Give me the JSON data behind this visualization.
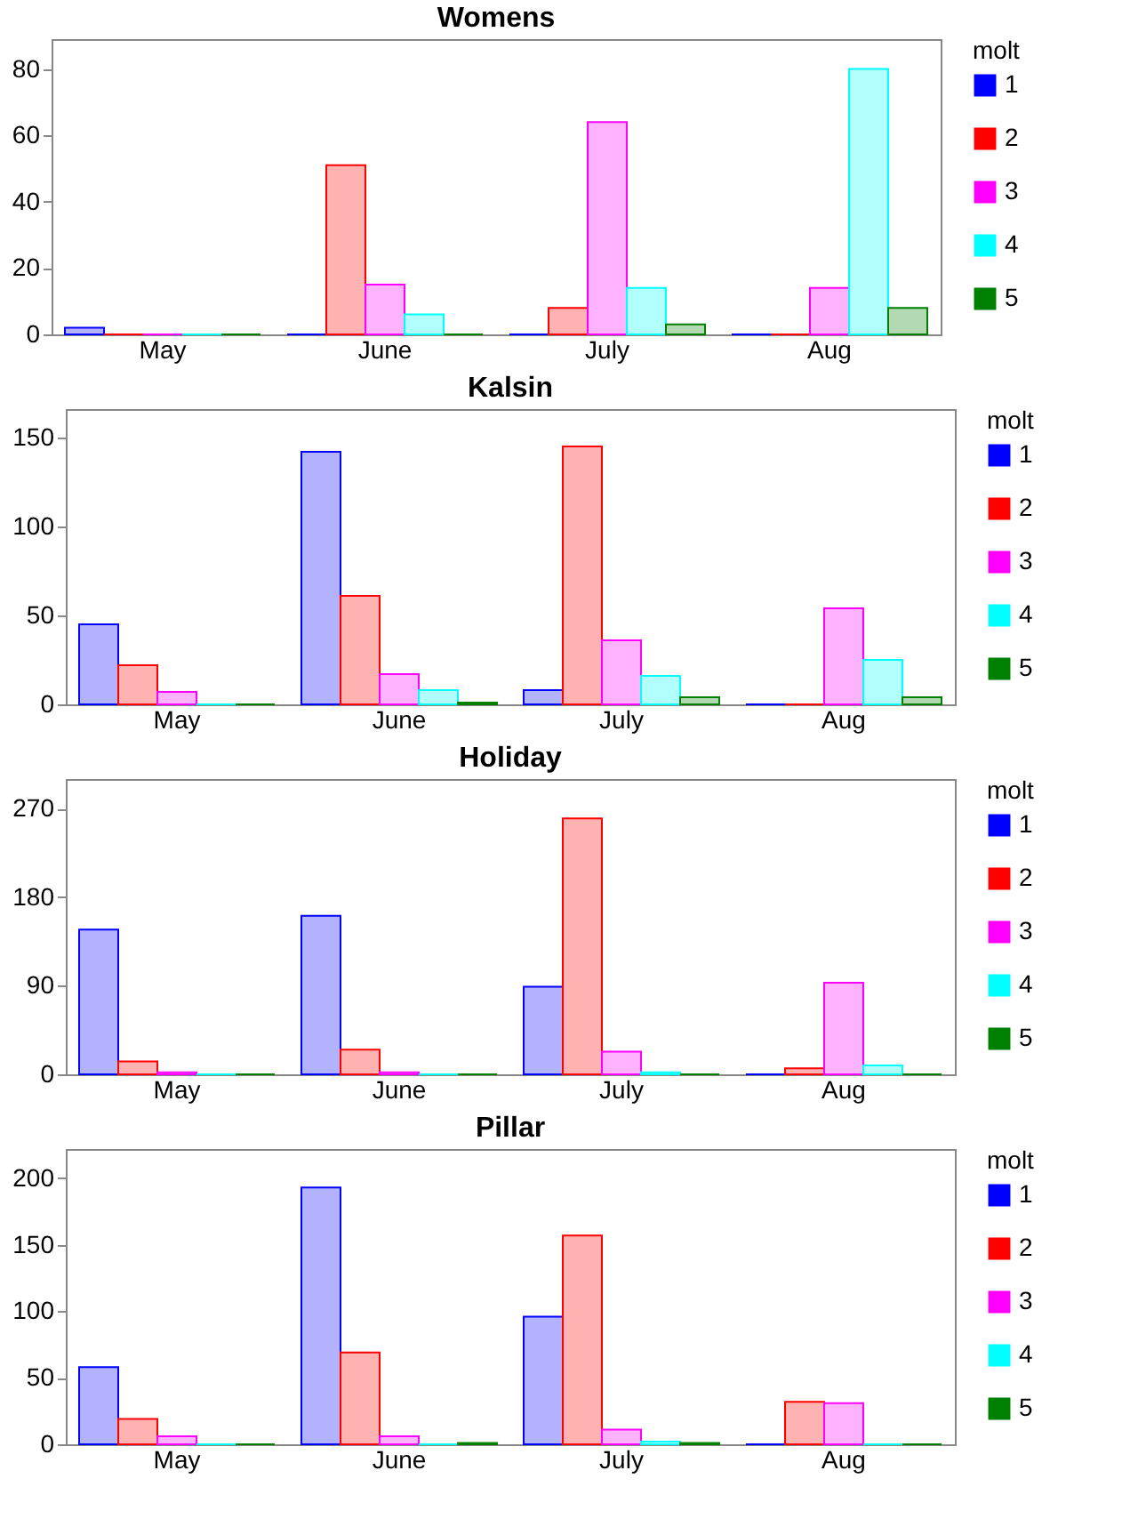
{
  "chart_data": [
    {
      "type": "bar",
      "title": "Womens",
      "categories": [
        "May",
        "June",
        "July",
        "Aug"
      ],
      "legend_title": "molt",
      "legend": "right",
      "ylim": [
        0,
        89
      ],
      "yticks": [
        0,
        20,
        40,
        60,
        80
      ],
      "series": [
        {
          "name": "1",
          "color": "#0000ff",
          "values": [
            2,
            0,
            0,
            0
          ]
        },
        {
          "name": "2",
          "color": "#ff0000",
          "values": [
            0,
            51,
            8,
            0
          ]
        },
        {
          "name": "3",
          "color": "#ff00ff",
          "values": [
            0,
            15,
            64,
            14
          ]
        },
        {
          "name": "4",
          "color": "#00ffff",
          "values": [
            0,
            6,
            14,
            80
          ]
        },
        {
          "name": "5",
          "color": "#008000",
          "values": [
            0,
            0,
            3,
            8
          ]
        }
      ]
    },
    {
      "type": "bar",
      "title": "Kalsin",
      "categories": [
        "May",
        "June",
        "July",
        "Aug"
      ],
      "legend_title": "molt",
      "legend": "right",
      "ylim": [
        0,
        166
      ],
      "yticks": [
        0,
        50,
        100,
        150
      ],
      "series": [
        {
          "name": "1",
          "color": "#0000ff",
          "values": [
            45,
            142,
            8,
            0
          ]
        },
        {
          "name": "2",
          "color": "#ff0000",
          "values": [
            22,
            61,
            145,
            0
          ]
        },
        {
          "name": "3",
          "color": "#ff00ff",
          "values": [
            7,
            17,
            36,
            54
          ]
        },
        {
          "name": "4",
          "color": "#00ffff",
          "values": [
            0,
            8,
            16,
            25
          ]
        },
        {
          "name": "5",
          "color": "#008000",
          "values": [
            0,
            1,
            4,
            4
          ]
        }
      ]
    },
    {
      "type": "bar",
      "title": "Holiday",
      "categories": [
        "May",
        "June",
        "July",
        "Aug"
      ],
      "legend_title": "molt",
      "legend": "right",
      "ylim": [
        0,
        300
      ],
      "yticks": [
        0,
        90,
        180,
        270
      ],
      "series": [
        {
          "name": "1",
          "color": "#0000ff",
          "values": [
            147,
            161,
            89,
            0
          ]
        },
        {
          "name": "2",
          "color": "#ff0000",
          "values": [
            13,
            25,
            260,
            6
          ]
        },
        {
          "name": "3",
          "color": "#ff00ff",
          "values": [
            2,
            2,
            23,
            93
          ]
        },
        {
          "name": "4",
          "color": "#00ffff",
          "values": [
            0,
            0,
            2,
            9
          ]
        },
        {
          "name": "5",
          "color": "#008000",
          "values": [
            0,
            0,
            0,
            0
          ]
        }
      ]
    },
    {
      "type": "bar",
      "title": "Pillar",
      "categories": [
        "May",
        "June",
        "July",
        "Aug"
      ],
      "legend_title": "molt",
      "legend": "right",
      "ylim": [
        0,
        222
      ],
      "yticks": [
        0,
        50,
        100,
        150,
        200
      ],
      "series": [
        {
          "name": "1",
          "color": "#0000ff",
          "values": [
            58,
            193,
            96,
            0
          ]
        },
        {
          "name": "2",
          "color": "#ff0000",
          "values": [
            19,
            69,
            157,
            32
          ]
        },
        {
          "name": "3",
          "color": "#ff00ff",
          "values": [
            6,
            6,
            11,
            31
          ]
        },
        {
          "name": "4",
          "color": "#00ffff",
          "values": [
            0,
            0,
            2,
            0
          ]
        },
        {
          "name": "5",
          "color": "#008000",
          "values": [
            0,
            1,
            1,
            0
          ]
        }
      ]
    }
  ]
}
